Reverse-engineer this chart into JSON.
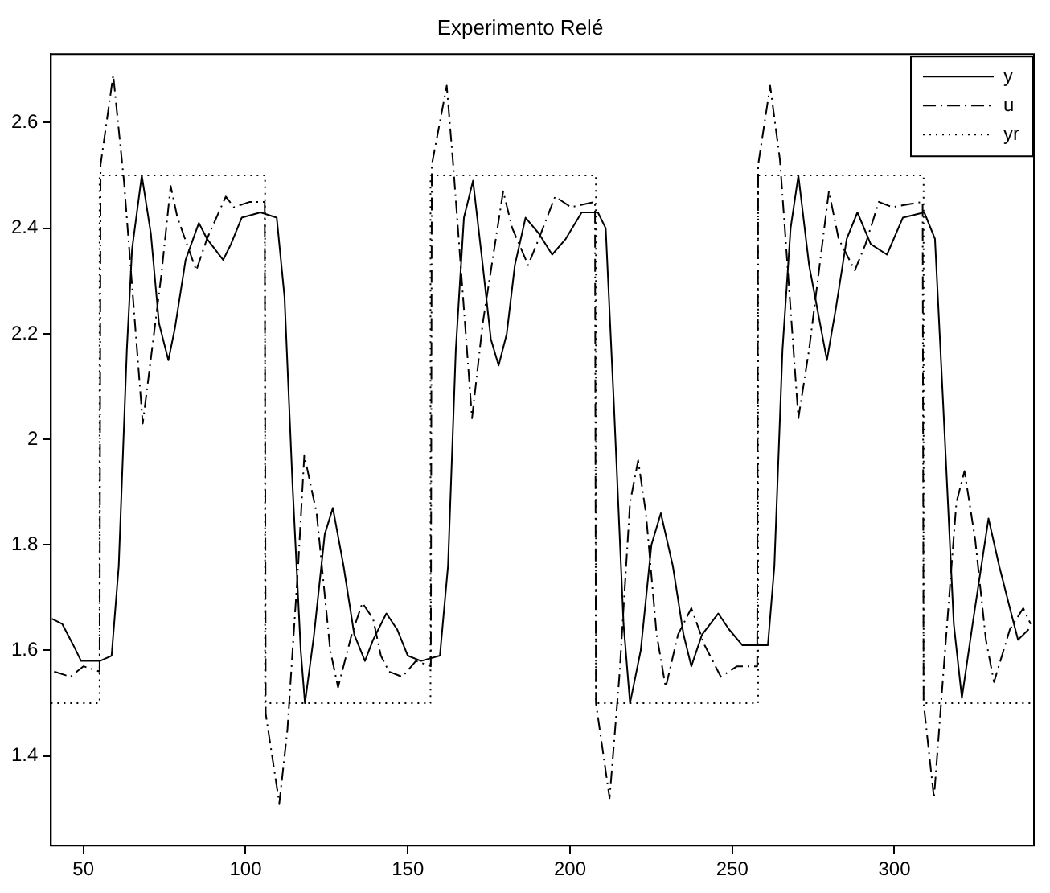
{
  "chart_data": {
    "type": "line",
    "title": "Experimento Relé",
    "xlim": [
      40,
      343
    ],
    "xticks": [
      50,
      100,
      150,
      200,
      250,
      300
    ],
    "ylim": [
      1.23,
      2.73
    ],
    "yticks": [
      1.4,
      1.6,
      1.8,
      2,
      2.2,
      2.4,
      2.6
    ],
    "grid": false,
    "legend": "top right",
    "marker": "none",
    "series": [
      {
        "name": "y",
        "color": "#000000",
        "line_style": "solid",
        "x": [
          40.3,
          43.5,
          46.9,
          49.3,
          51.8,
          55.1,
          58.7,
          60.9,
          63.4,
          65,
          68,
          70.8,
          73.3,
          76.2,
          78.2,
          81.5,
          85.6,
          88.1,
          93.1,
          95.5,
          98.8,
          104.6,
          109.6,
          112,
          114.5,
          117,
          118.3,
          121.1,
          124.4,
          126.9,
          130.2,
          133.5,
          136.8,
          139.3,
          143.4,
          146.7,
          150,
          154.1,
          159.9,
          162.4,
          164.8,
          167.3,
          170.1,
          173.1,
          175.6,
          178,
          180.5,
          183,
          186.3,
          190.4,
          194.5,
          198.7,
          203.6,
          208.6,
          211,
          213.5,
          216.5,
          218.5,
          221.8,
          225.1,
          228,
          231.7,
          235,
          237.4,
          240.7,
          245.7,
          249,
          253.1,
          257.2,
          261,
          263,
          265.5,
          268,
          270.4,
          273.7,
          279.2,
          282,
          285.3,
          288.6,
          292.7,
          297.7,
          302.6,
          309.2,
          312.5,
          315,
          318.3,
          320.8,
          324.1,
          329,
          332.3,
          335.6,
          338.1,
          341.4
        ],
        "values": [
          1.66,
          1.65,
          1.61,
          1.58,
          1.58,
          1.58,
          1.59,
          1.76,
          2.17,
          2.36,
          2.5,
          2.39,
          2.22,
          2.15,
          2.21,
          2.34,
          2.41,
          2.38,
          2.34,
          2.37,
          2.42,
          2.43,
          2.42,
          2.27,
          1.91,
          1.6,
          1.5,
          1.63,
          1.82,
          1.87,
          1.76,
          1.63,
          1.58,
          1.62,
          1.67,
          1.64,
          1.59,
          1.58,
          1.59,
          1.76,
          2.17,
          2.42,
          2.49,
          2.33,
          2.19,
          2.14,
          2.2,
          2.33,
          2.42,
          2.39,
          2.35,
          2.38,
          2.43,
          2.43,
          2.4,
          2.07,
          1.65,
          1.5,
          1.6,
          1.8,
          1.86,
          1.76,
          1.63,
          1.57,
          1.63,
          1.67,
          1.64,
          1.61,
          1.61,
          1.61,
          1.76,
          2.17,
          2.4,
          2.5,
          2.33,
          2.15,
          2.25,
          2.38,
          2.43,
          2.37,
          2.35,
          2.42,
          2.43,
          2.38,
          2.07,
          1.65,
          1.51,
          1.65,
          1.85,
          1.76,
          1.68,
          1.62,
          1.64
        ]
      },
      {
        "name": "u",
        "color": "#000000",
        "line_style": "dashdot",
        "x": [
          41,
          46,
          50,
          55,
          55.3,
          59.2,
          62.5,
          68.3,
          74,
          76.9,
          79,
          84.8,
          88.1,
          93.9,
          96.4,
          101.3,
          105.9,
          106.2,
          110.4,
          112.9,
          116.2,
          118.1,
          121.9,
          126.1,
          128.5,
          132.7,
          136,
          139.3,
          141.7,
          144.2,
          148.3,
          152.5,
          157.1,
          157.4,
          162,
          164,
          169.8,
          173.1,
          179.4,
          182.2,
          187.1,
          190.4,
          195.4,
          200.3,
          207.7,
          208,
          212.2,
          215.2,
          218.5,
          221,
          223.4,
          226.7,
          229.5,
          233.3,
          237.4,
          241.5,
          246.5,
          251.5,
          257.7,
          258,
          261.7,
          264.7,
          270.4,
          273.7,
          279.8,
          282.8,
          287.8,
          291.1,
          295.2,
          299.3,
          308.7,
          309,
          312.2,
          315,
          319.1,
          321.6,
          324.9,
          328.2,
          330.7,
          335.6,
          339.7,
          342
        ],
        "values": [
          1.56,
          1.55,
          1.57,
          1.56,
          2.52,
          2.69,
          2.49,
          2.03,
          2.31,
          2.48,
          2.42,
          2.32,
          2.38,
          2.46,
          2.44,
          2.45,
          2.45,
          1.48,
          1.31,
          1.45,
          1.76,
          1.97,
          1.86,
          1.6,
          1.53,
          1.63,
          1.69,
          1.66,
          1.59,
          1.56,
          1.55,
          1.58,
          1.57,
          2.52,
          2.67,
          2.52,
          2.04,
          2.22,
          2.47,
          2.4,
          2.33,
          2.38,
          2.46,
          2.44,
          2.45,
          1.5,
          1.32,
          1.55,
          1.88,
          1.96,
          1.86,
          1.63,
          1.53,
          1.63,
          1.68,
          1.61,
          1.55,
          1.57,
          1.57,
          2.52,
          2.67,
          2.53,
          2.04,
          2.17,
          2.47,
          2.38,
          2.32,
          2.37,
          2.45,
          2.44,
          2.45,
          1.5,
          1.32,
          1.55,
          1.88,
          1.94,
          1.81,
          1.62,
          1.54,
          1.64,
          1.68,
          1.65
        ]
      },
      {
        "name": "yr",
        "color": "#000000",
        "line_style": "dotted",
        "x": [
          40,
          55,
          55,
          106,
          106,
          157,
          157,
          208,
          208,
          258,
          258,
          309,
          309,
          343
        ],
        "values": [
          1.5,
          1.5,
          2.5,
          2.5,
          1.5,
          1.5,
          2.5,
          2.5,
          1.5,
          1.5,
          2.5,
          2.5,
          1.5,
          1.5
        ]
      }
    ]
  }
}
